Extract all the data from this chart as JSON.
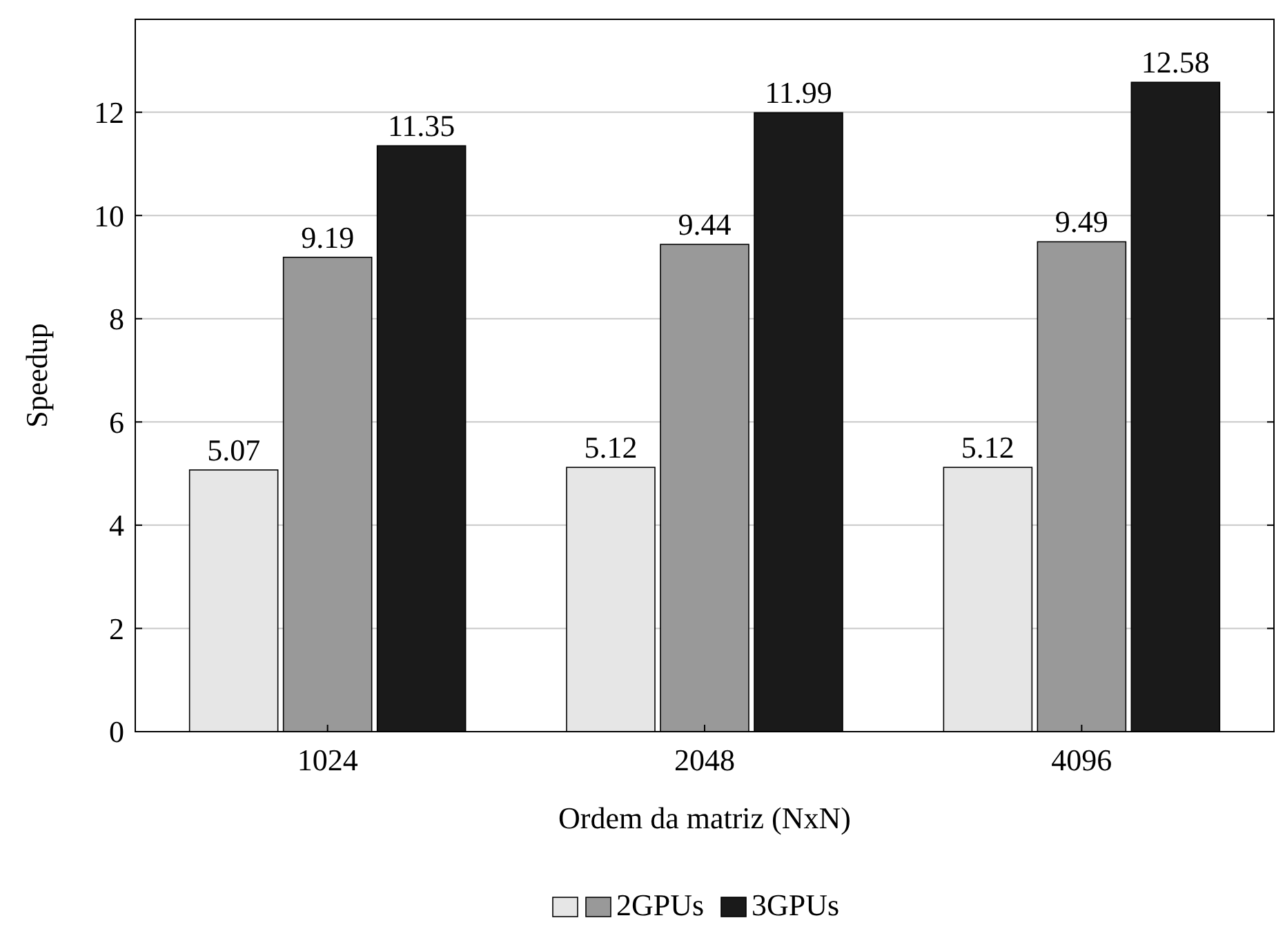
{
  "chart_data": {
    "type": "bar",
    "xlabel": "Ordem da matriz (NxN)",
    "ylabel": "Speedup",
    "categories": [
      "1024",
      "2048",
      "4096"
    ],
    "series": [
      {
        "color": "#e6e6e6",
        "values": [
          5.07,
          5.12,
          5.12
        ]
      },
      {
        "name": "2GPUs",
        "color": "#999999",
        "values": [
          9.19,
          9.44,
          9.49
        ]
      },
      {
        "name": "3GPUs",
        "color": "#1a1a1a",
        "values": [
          11.35,
          11.99,
          12.58
        ]
      }
    ],
    "ylim": [
      0,
      13.8
    ],
    "yticks": [
      0,
      2,
      4,
      6,
      8,
      10,
      12
    ],
    "grid": "y",
    "data_labels": true,
    "legend": "bottom"
  }
}
